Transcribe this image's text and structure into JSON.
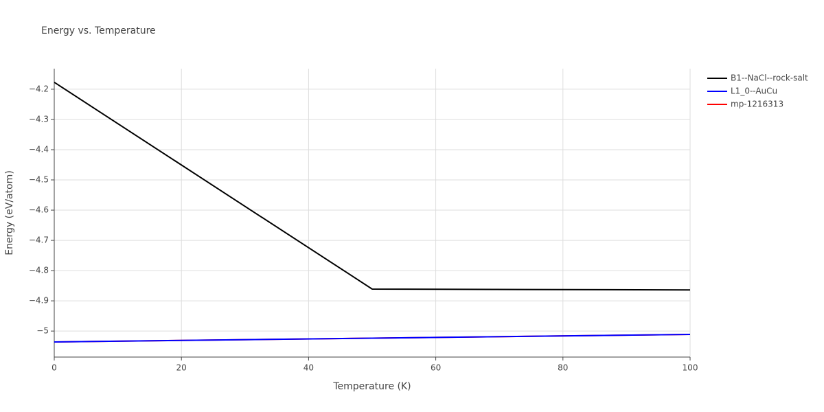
{
  "chart_data": {
    "type": "line",
    "title": "Energy vs. Temperature",
    "x_label": "Temperature (K)",
    "y_label": "Energy (eV/atom)",
    "x": [
      0,
      50,
      100
    ],
    "series": [
      {
        "name": "B1--NaCl--rock-salt",
        "color": "#000000",
        "values": [
          -4.177,
          -4.861,
          -4.864
        ]
      },
      {
        "name": "L1_0--AuCu",
        "color": "#0000ff",
        "values": [
          -5.036,
          -5.0235,
          -5.011
        ]
      },
      {
        "name": "mp-1216313",
        "color": "#ff0000",
        "values": [
          -5.036,
          -5.0235,
          -5.011
        ]
      }
    ],
    "xlim": [
      0,
      100
    ],
    "xticks": [
      0,
      20,
      40,
      60,
      80,
      100
    ],
    "ylim": [
      -5.086,
      -4.132
    ],
    "yticks": [
      {
        "value": -4.2,
        "label": "−4.2"
      },
      {
        "value": -4.3,
        "label": "−4.3"
      },
      {
        "value": -4.4,
        "label": "−4.4"
      },
      {
        "value": -4.5,
        "label": "−4.5"
      },
      {
        "value": -4.6,
        "label": "−4.6"
      },
      {
        "value": -4.7,
        "label": "−4.7"
      },
      {
        "value": -4.8,
        "label": "−4.8"
      },
      {
        "value": -4.9,
        "label": "−4.9"
      },
      {
        "value": -5,
        "label": "−5"
      }
    ],
    "grid": true,
    "legend": "top-right"
  }
}
